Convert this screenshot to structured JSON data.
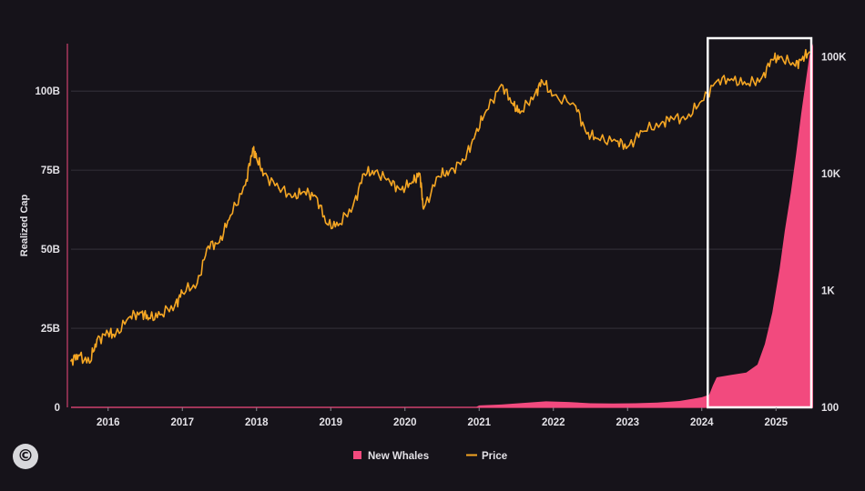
{
  "chart_data": {
    "type": "line",
    "title": "",
    "ylabel": "Realized Cap",
    "x_ticks": [
      "2016",
      "2017",
      "2018",
      "2019",
      "2020",
      "2021",
      "2022",
      "2023",
      "2024",
      "2025"
    ],
    "xlim": [
      2015.5,
      2025.5
    ],
    "y_left": {
      "ticks": [
        "0",
        "25B",
        "50B",
        "75B",
        "100B"
      ],
      "ylim": [
        0,
        115
      ]
    },
    "y_right": {
      "ticks": [
        "100",
        "1K",
        "10K",
        "100K"
      ],
      "scale": "log",
      "ylim": [
        100,
        130000
      ]
    },
    "highlight_box": {
      "x_range": [
        2024.08,
        2025.55
      ]
    },
    "series": [
      {
        "name": "New Whales",
        "type": "area",
        "axis": "left",
        "color": "#f24a7e",
        "x": [
          2015.5,
          2020.95,
          2021.0,
          2021.3,
          2021.6,
          2021.9,
          2022.2,
          2022.5,
          2022.8,
          2023.1,
          2023.4,
          2023.7,
          2024.0,
          2024.1,
          2024.15,
          2024.2,
          2024.4,
          2024.6,
          2024.75,
          2024.85,
          2024.95,
          2025.05,
          2025.12,
          2025.2,
          2025.27,
          2025.34,
          2025.4,
          2025.45,
          2025.5
        ],
        "y": [
          0,
          0,
          0.6,
          0.9,
          1.4,
          1.9,
          1.7,
          1.3,
          1.2,
          1.3,
          1.5,
          2.0,
          3.2,
          4.0,
          7.0,
          9.5,
          10.3,
          11.0,
          13.5,
          20.0,
          30.0,
          44.0,
          56.0,
          68.0,
          80.0,
          93.0,
          103.0,
          111.0,
          115.0
        ]
      },
      {
        "name": "Price",
        "type": "line",
        "axis": "right",
        "color": "#f5a623",
        "x": [
          2015.5,
          2015.6,
          2015.75,
          2015.85,
          2016.0,
          2016.1,
          2016.3,
          2016.45,
          2016.55,
          2016.7,
          2016.9,
          2017.0,
          2017.2,
          2017.35,
          2017.5,
          2017.65,
          2017.85,
          2017.95,
          2018.0,
          2018.1,
          2018.3,
          2018.5,
          2018.65,
          2018.8,
          2018.95,
          2019.1,
          2019.3,
          2019.45,
          2019.6,
          2019.8,
          2019.95,
          2020.1,
          2020.2,
          2020.25,
          2020.45,
          2020.6,
          2020.8,
          2020.95,
          2021.1,
          2021.3,
          2021.45,
          2021.55,
          2021.75,
          2021.85,
          2022.0,
          2022.3,
          2022.45,
          2022.6,
          2022.85,
          2023.0,
          2023.2,
          2023.45,
          2023.6,
          2023.8,
          2024.0,
          2024.2,
          2024.4,
          2024.6,
          2024.8,
          2024.95,
          2025.05,
          2025.25,
          2025.35,
          2025.45
        ],
        "y": [
          250,
          280,
          240,
          380,
          430,
          420,
          600,
          650,
          580,
          620,
          750,
          960,
          1150,
          2400,
          2600,
          4400,
          8000,
          16500,
          13500,
          10000,
          7500,
          6400,
          7000,
          6400,
          3700,
          3600,
          5300,
          10000,
          10500,
          8500,
          7300,
          8500,
          10000,
          5000,
          9500,
          10500,
          13000,
          22000,
          35000,
          58000,
          40000,
          33000,
          48000,
          62000,
          47000,
          38000,
          22000,
          20000,
          19000,
          17000,
          23000,
          27000,
          30000,
          30000,
          42000,
          62000,
          65000,
          58000,
          65000,
          95000,
          100000,
          85000,
          96000,
          110000
        ]
      }
    ]
  },
  "legend": {
    "items": [
      {
        "label": "New Whales",
        "color": "#f24a7e",
        "kind": "square"
      },
      {
        "label": "Price",
        "color": "#f5a623",
        "kind": "line"
      }
    ]
  },
  "colors": {
    "background": "#16131a",
    "grid": "#3a3740",
    "axis_zero": "#f24a7e",
    "box": "#ffffff"
  },
  "icons": {
    "logo": "copyright-c-logo"
  }
}
